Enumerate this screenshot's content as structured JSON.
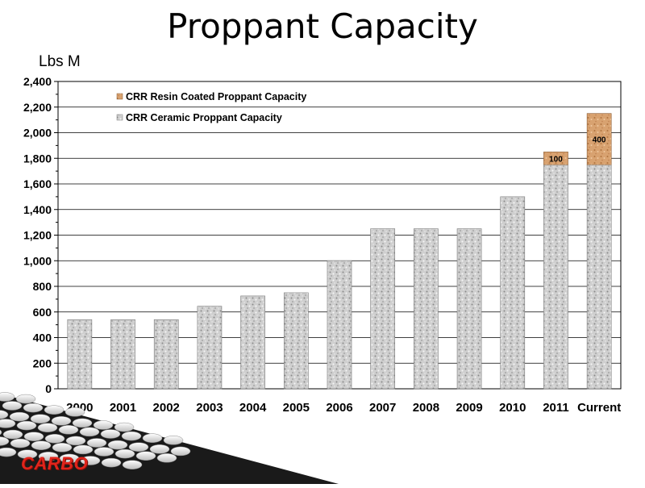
{
  "slide": {
    "title": "Proppant Capacity",
    "unit": "Lbs M"
  },
  "logo": {
    "text": "CARBO"
  },
  "colors": {
    "ceramic": "#c8c8c8",
    "resin": "#d9a372",
    "logo": "#e0241b"
  },
  "chart_data": {
    "type": "bar",
    "stacked": true,
    "categories": [
      "2000",
      "2001",
      "2002",
      "2003",
      "2004",
      "2005",
      "2006",
      "2007",
      "2008",
      "2009",
      "2010",
      "2011",
      "Current"
    ],
    "series": [
      {
        "name": "CRR Ceramic Proppant Capacity",
        "values": [
          540,
          540,
          540,
          645,
          725,
          750,
          1000,
          1250,
          1250,
          1250,
          1500,
          1750,
          1750
        ]
      },
      {
        "name": "CRR Resin Coated Proppant Capacity",
        "values": [
          0,
          0,
          0,
          0,
          0,
          0,
          0,
          0,
          0,
          0,
          0,
          100,
          400
        ],
        "data_labels": [
          "",
          "",
          "",
          "",
          "",
          "",
          "",
          "",
          "",
          "",
          "",
          "100",
          "400"
        ]
      }
    ],
    "ylim": [
      0,
      2400
    ],
    "yticks": [
      "0",
      "200",
      "400",
      "600",
      "800",
      "1,000",
      "1,200",
      "1,400",
      "1,600",
      "1,800",
      "2,000",
      "2,200",
      "2,400"
    ],
    "ytick_values": [
      0,
      200,
      400,
      600,
      800,
      1000,
      1200,
      1400,
      1600,
      1800,
      2000,
      2200,
      2400
    ],
    "grid": true,
    "legend": "top-left",
    "legend_entries": [
      "CRR Resin Coated Proppant Capacity",
      "CRR Ceramic Proppant Capacity"
    ]
  }
}
